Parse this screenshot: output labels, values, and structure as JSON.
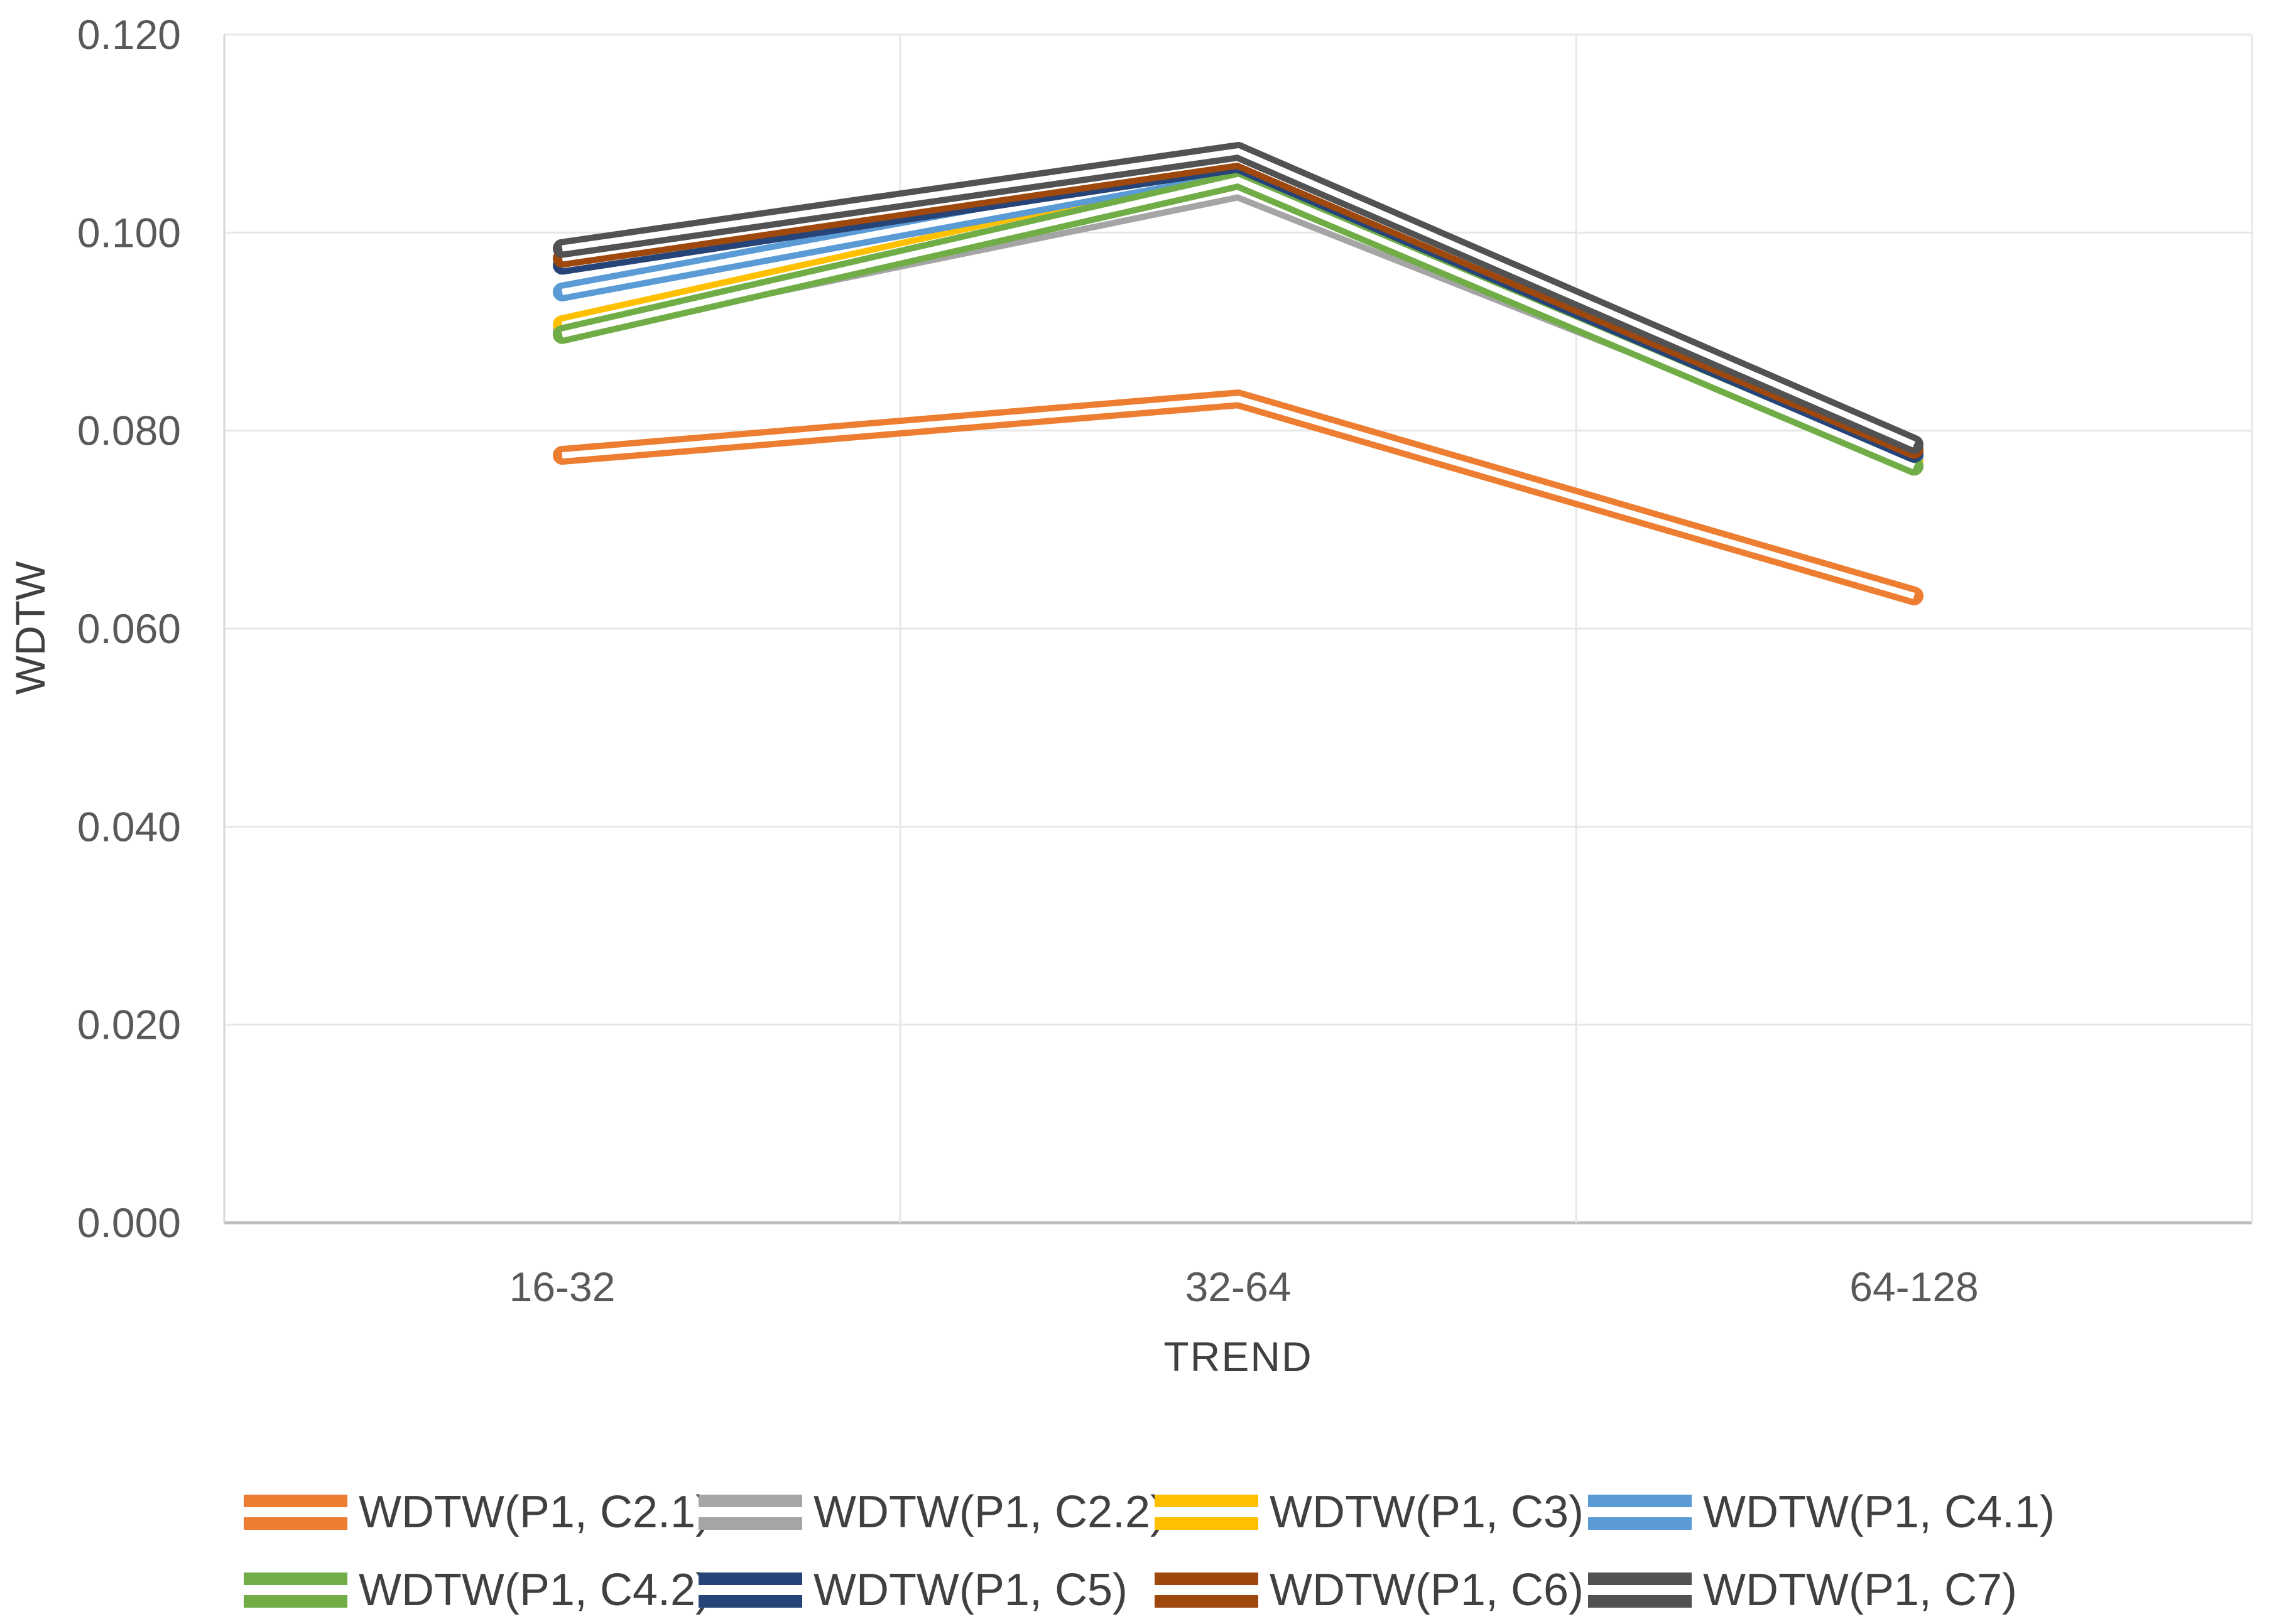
{
  "chart_data": {
    "type": "line",
    "title": "",
    "xlabel": "TREND",
    "ylabel": "WDTW",
    "categories": [
      "16-32",
      "32-64",
      "64-128"
    ],
    "ylim": [
      0,
      0.12
    ],
    "ytick_step": 0.02,
    "ytick_labels": [
      "0.120",
      "0.100",
      "0.080",
      "0.060",
      "0.040",
      "0.020",
      "0.000"
    ],
    "grid": "horizontal gridlines at each y tick, vertical gridlines at category boundaries, light gray plot border",
    "legend_position": "bottom, two rows of four",
    "line_style": "each series drawn as a double parallel line",
    "colors": {
      "gridline": "#e7e7e7",
      "axis_line": "#bfbfbf",
      "tick_label": "#595959",
      "axis_title": "#404040",
      "legend_text": "#404040",
      "background": "#ffffff"
    },
    "series": [
      {
        "name": "WDTW(P1, C2.1)",
        "color": "#ED7D31",
        "values": [
          0.0775,
          0.0832,
          0.0633
        ]
      },
      {
        "name": "WDTW(P1, C2.2)",
        "color": "#A5A5A5",
        "values": [
          0.0902,
          0.1042,
          0.0772
        ]
      },
      {
        "name": "WDTW(P1, C3)",
        "color": "#FFC000",
        "values": [
          0.0907,
          0.1058,
          0.077
        ]
      },
      {
        "name": "WDTW(P1, C4.1)",
        "color": "#5B9BD5",
        "values": [
          0.094,
          0.1066,
          0.0775
        ]
      },
      {
        "name": "WDTW(P1, C4.2)",
        "color": "#70AD47",
        "values": [
          0.0897,
          0.1053,
          0.0764
        ]
      },
      {
        "name": "WDTW(P1, C5)",
        "color": "#264478",
        "values": [
          0.0967,
          0.107,
          0.0777
        ]
      },
      {
        "name": "WDTW(P1, C6)",
        "color": "#9E480E",
        "values": [
          0.0974,
          0.1074,
          0.0781
        ]
      },
      {
        "name": "WDTW(P1, C7)",
        "color": "#525252",
        "values": [
          0.0984,
          0.1082,
          0.0786
        ]
      }
    ]
  }
}
